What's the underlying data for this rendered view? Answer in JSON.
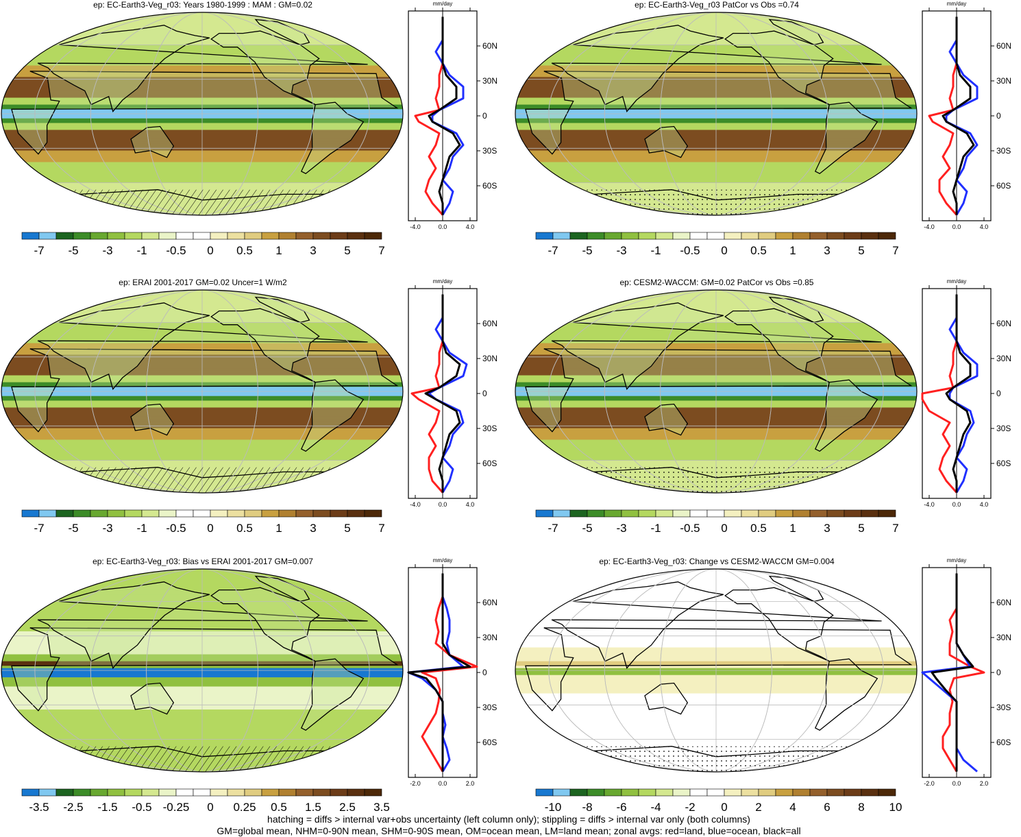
{
  "figure": {
    "footer_lines": [
      "hatching = diffs > internal var+obs uncertainty (left column only); stippling = diffs > internal var only (both columns)",
      "GM=global mean, NHM=0-90N mean, SHM=0-90S mean, OM=ocean mean, LM=land mean; zonal avgs: red=land, blue=ocean, black=all"
    ],
    "zonal_units": "mm/day",
    "lat_labels": [
      "60N",
      "30N",
      "0",
      "30S",
      "60S"
    ],
    "lat_values": [
      60,
      30,
      0,
      -30,
      -60
    ],
    "series_colors": {
      "land": "#ff2020",
      "ocean": "#2030ff",
      "all": "#000000"
    },
    "colors": {
      "ocean_map": "#eef2f8",
      "coast": "#000000",
      "grid": "#bbbbbb"
    }
  },
  "panels": [
    {
      "title": "ep: EC-Earth3-Veg_r03: Years 1980-1999 : MAM : GM=0.02",
      "colorbar_labels": [
        "-7",
        "-5",
        "-3",
        "-1",
        "-0.5",
        "0",
        "0.5",
        "1",
        "3",
        "5",
        "7"
      ],
      "x_tick_labels": [
        "-4.0",
        "0.0",
        "4.0"
      ],
      "xlim": [
        -5,
        5
      ],
      "hatch": "hatch",
      "pattern": "mean"
    },
    {
      "title": "ep: EC-Earth3-Veg_r03 PatCor vs Obs =0.74",
      "colorbar_labels": [
        "-7",
        "-5",
        "-3",
        "-1",
        "-0.5",
        "0",
        "0.5",
        "1",
        "3",
        "5",
        "7"
      ],
      "x_tick_labels": [
        "-4.0",
        "0.0",
        "4.0"
      ],
      "xlim": [
        -5,
        5
      ],
      "hatch": "stipple",
      "pattern": "mean"
    },
    {
      "title": "ep: ERAI 2001-2017 GM=0.02 Uncer=1 W/m2",
      "colorbar_labels": [
        "-7",
        "-5",
        "-3",
        "-1",
        "-0.5",
        "0",
        "0.5",
        "1",
        "3",
        "5",
        "7"
      ],
      "x_tick_labels": [
        "-4.0",
        "0.0",
        "4.0"
      ],
      "xlim": [
        -5,
        5
      ],
      "hatch": "hatch",
      "pattern": "mean"
    },
    {
      "title": "ep: CESM2-WACCM: GM=0.02 PatCor vs Obs =0.85",
      "colorbar_labels": [
        "-7",
        "-5",
        "-3",
        "-1",
        "-0.5",
        "0",
        "0.5",
        "1",
        "3",
        "5",
        "7"
      ],
      "x_tick_labels": [
        "-4.0",
        "0.0",
        "4.0"
      ],
      "xlim": [
        -5,
        5
      ],
      "hatch": "stipple",
      "pattern": "mean"
    },
    {
      "title": "ep: EC-Earth3-Veg_r03: Bias vs ERAI 2001-2017 GM=0.007",
      "colorbar_labels": [
        "-3.5",
        "-2.5",
        "-1.5",
        "-0.5",
        "-0.25",
        "0",
        "0.25",
        "0.5",
        "1.5",
        "2.5",
        "3.5"
      ],
      "x_tick_labels": [
        "-2.0",
        "0.0",
        "2.0"
      ],
      "xlim": [
        -2.5,
        2.5
      ],
      "hatch": "hatch",
      "pattern": "bias"
    },
    {
      "title": "ep: EC-Earth3-Veg_r03: Change vs CESM2-WACCM GM=0.004",
      "colorbar_labels": [
        "-10",
        "-8",
        "-6",
        "-4",
        "-2",
        "0",
        "2",
        "4",
        "6",
        "8",
        "10"
      ],
      "x_tick_labels": [
        "-2.0",
        "0.0",
        "2.0"
      ],
      "xlim": [
        -2.5,
        2.5
      ],
      "hatch": "stipple",
      "pattern": "change"
    }
  ],
  "colorbar_colors": [
    "#1878d0",
    "#80c8f0",
    "#1c6420",
    "#3c8c28",
    "#68a830",
    "#90c040",
    "#b4d860",
    "#d4e890",
    "#eaf4c8",
    "#ffffff",
    "#ffffff",
    "#f4f0c0",
    "#ece0a0",
    "#e0cc80",
    "#c8a040",
    "#b08030",
    "#94602c",
    "#7c4c20",
    "#6c3c18",
    "#5a3010",
    "#4c2808"
  ],
  "chart_data": [
    {
      "type": "line",
      "title": "ep: EC-Earth3-Veg_r03: Years 1980-1999 : MAM : GM=0.02",
      "xlabel": "mm/day",
      "y_axis": "latitude",
      "series": [
        {
          "name": "land",
          "lat": [
            -85,
            -75,
            -65,
            -55,
            -45,
            -35,
            -25,
            -15,
            -5,
            0,
            5,
            15,
            25,
            35,
            45,
            55,
            65,
            75,
            85
          ],
          "values": [
            0,
            -1.5,
            -2.5,
            -2,
            -1,
            -2,
            -1,
            -0.5,
            -3.5,
            -4,
            -0.5,
            -1,
            -0.5,
            -0.5,
            0,
            0,
            0,
            0,
            0
          ]
        },
        {
          "name": "ocean",
          "lat": [
            -85,
            -75,
            -65,
            -55,
            -45,
            -35,
            -25,
            -15,
            -5,
            0,
            5,
            15,
            25,
            35,
            45,
            55,
            65,
            75,
            85
          ],
          "values": [
            0,
            1,
            1.5,
            0,
            1,
            1.5,
            3,
            2,
            -1.5,
            -1.5,
            -0.5,
            3,
            3,
            1,
            0,
            -1,
            0,
            0,
            0
          ]
        },
        {
          "name": "all",
          "lat": [
            -85,
            -75,
            -65,
            -55,
            -45,
            -35,
            -25,
            -15,
            -5,
            0,
            5,
            15,
            25,
            35,
            45,
            55,
            65,
            75,
            85
          ],
          "values": [
            0,
            0,
            -0.5,
            0,
            0.5,
            1,
            2.5,
            1.5,
            -1.5,
            -2,
            -0.5,
            2,
            2,
            0.5,
            0,
            0,
            0,
            0,
            0
          ]
        }
      ]
    },
    {
      "type": "line",
      "title": "ep: EC-Earth3-Veg_r03 PatCor vs Obs =0.74",
      "xlabel": "mm/day",
      "y_axis": "latitude",
      "series": [
        {
          "name": "land",
          "lat": [
            -85,
            -75,
            -65,
            -55,
            -45,
            -35,
            -25,
            -15,
            -5,
            0,
            5,
            15,
            25,
            35,
            45,
            55,
            65,
            75,
            85
          ],
          "values": [
            0,
            -1.5,
            -2.5,
            -2.5,
            -1,
            -2,
            -1,
            -0.5,
            -3.5,
            -4,
            -0.5,
            -1,
            -0.5,
            -0.5,
            0,
            0,
            0,
            0,
            0
          ]
        },
        {
          "name": "ocean",
          "lat": [
            -85,
            -75,
            -65,
            -55,
            -45,
            -35,
            -25,
            -15,
            -5,
            0,
            5,
            15,
            25,
            35,
            45,
            55,
            65,
            75,
            85
          ],
          "values": [
            0,
            1,
            1.5,
            0,
            1,
            1.5,
            3,
            2,
            -1.5,
            -1.5,
            -0.5,
            3,
            3,
            1,
            0,
            -1,
            0,
            0,
            0
          ]
        },
        {
          "name": "all",
          "lat": [
            -85,
            -75,
            -65,
            -55,
            -45,
            -35,
            -25,
            -15,
            -5,
            0,
            5,
            15,
            25,
            35,
            45,
            55,
            65,
            75,
            85
          ],
          "values": [
            0,
            0,
            -0.5,
            0,
            0.5,
            1,
            2.5,
            1.5,
            -1.5,
            -2,
            -0.5,
            2,
            2,
            0.5,
            0,
            0,
            0,
            0,
            0
          ]
        }
      ]
    },
    {
      "type": "line",
      "title": "ep: ERAI 2001-2017 GM=0.02 Uncer=1 W/m2",
      "xlabel": "mm/day",
      "y_axis": "latitude",
      "series": [
        {
          "name": "land",
          "lat": [
            -85,
            -75,
            -65,
            -55,
            -45,
            -35,
            -25,
            -15,
            -5,
            0,
            5,
            15,
            25,
            35,
            45,
            55,
            65,
            75,
            85
          ],
          "values": [
            0,
            -1.5,
            -2,
            -2,
            -1,
            -2,
            -1,
            -0.5,
            -3.5,
            -4.5,
            -0.5,
            -1,
            -0.5,
            -0.5,
            0,
            0,
            0,
            0,
            0
          ]
        },
        {
          "name": "ocean",
          "lat": [
            -85,
            -75,
            -65,
            -55,
            -45,
            -35,
            -25,
            -15,
            -5,
            0,
            5,
            15,
            25,
            35,
            45,
            55,
            65,
            75,
            85
          ],
          "values": [
            0,
            1,
            1.5,
            0,
            1,
            1.5,
            3,
            2.5,
            -1,
            -2,
            -0.5,
            3,
            3.5,
            1,
            0,
            -1,
            0,
            0,
            0
          ]
        },
        {
          "name": "all",
          "lat": [
            -85,
            -75,
            -65,
            -55,
            -45,
            -35,
            -25,
            -15,
            -5,
            0,
            5,
            15,
            25,
            35,
            45,
            55,
            65,
            75,
            85
          ],
          "values": [
            0,
            0,
            -0.5,
            0,
            0.5,
            1,
            2.5,
            2,
            -1,
            -2.5,
            -0.5,
            2,
            2.5,
            0.5,
            0,
            0,
            0,
            0,
            0
          ]
        }
      ]
    },
    {
      "type": "line",
      "title": "ep: CESM2-WACCM: GM=0.02 PatCor vs Obs =0.85",
      "xlabel": "mm/day",
      "y_axis": "latitude",
      "series": [
        {
          "name": "land",
          "lat": [
            -85,
            -75,
            -65,
            -55,
            -45,
            -35,
            -25,
            -15,
            -5,
            0,
            5,
            15,
            25,
            35,
            45,
            55,
            65,
            75,
            85
          ],
          "values": [
            0,
            -1.5,
            -2.5,
            -2,
            -1,
            -2,
            -1,
            -4,
            -5,
            -5,
            -0.5,
            -1,
            -0.5,
            -0.5,
            0,
            0,
            0,
            0,
            0
          ]
        },
        {
          "name": "ocean",
          "lat": [
            -85,
            -75,
            -65,
            -55,
            -45,
            -35,
            -25,
            -15,
            -5,
            0,
            5,
            15,
            25,
            35,
            45,
            55,
            65,
            75,
            85
          ],
          "values": [
            0,
            1,
            1.5,
            0,
            1,
            1.5,
            2.5,
            2,
            -1,
            -1,
            -0.5,
            3,
            3,
            1,
            0,
            -1,
            0,
            0,
            0
          ]
        },
        {
          "name": "all",
          "lat": [
            -85,
            -75,
            -65,
            -55,
            -45,
            -35,
            -25,
            -15,
            -5,
            0,
            5,
            15,
            25,
            35,
            45,
            55,
            65,
            75,
            85
          ],
          "values": [
            0,
            0,
            -0.5,
            0,
            0.5,
            1,
            2,
            1.5,
            -1,
            -1.5,
            -0.5,
            2,
            2,
            0.5,
            0,
            0,
            0,
            0,
            0
          ]
        }
      ]
    },
    {
      "type": "line",
      "title": "ep: EC-Earth3-Veg_r03: Bias vs ERAI 2001-2017 GM=0.007",
      "xlabel": "mm/day",
      "y_axis": "latitude",
      "series": [
        {
          "name": "land",
          "lat": [
            -85,
            -75,
            -65,
            -55,
            -45,
            -35,
            -25,
            -15,
            -5,
            0,
            5,
            15,
            25,
            35,
            45,
            55,
            65,
            75,
            85
          ],
          "values": [
            0,
            -0.5,
            -1,
            -1.5,
            -1,
            -0.5,
            -0.3,
            -0.2,
            -0.5,
            -1.5,
            2.5,
            0.5,
            -0.5,
            -0.3,
            -0.5,
            -0.3,
            0,
            0,
            0
          ]
        },
        {
          "name": "ocean",
          "lat": [
            -85,
            -75,
            -65,
            -55,
            -45,
            -35,
            -25,
            -15,
            -5,
            0,
            5,
            15,
            25,
            35,
            45,
            55,
            65,
            75,
            85
          ],
          "values": [
            0,
            0.5,
            0.3,
            0,
            0.2,
            0,
            0,
            -0.5,
            -1.5,
            -2.5,
            1.5,
            0.5,
            0.3,
            0.5,
            0.5,
            0.3,
            0,
            0,
            0
          ]
        },
        {
          "name": "all",
          "lat": [
            -85,
            -75,
            -65,
            -55,
            -45,
            -35,
            -25,
            -15,
            -5,
            0,
            5,
            15,
            25,
            35,
            45,
            55,
            65,
            75,
            85
          ],
          "values": [
            0,
            0,
            0,
            0,
            0,
            0,
            0,
            -0.5,
            -1.2,
            -2.5,
            2,
            0.5,
            0,
            0,
            0,
            0,
            0,
            0,
            0
          ]
        }
      ]
    },
    {
      "type": "line",
      "title": "ep: EC-Earth3-Veg_r03: Change vs CESM2-WACCM GM=0.004",
      "xlabel": "mm/day",
      "y_axis": "latitude",
      "series": [
        {
          "name": "land",
          "lat": [
            -85,
            -75,
            -65,
            -55,
            -45,
            -35,
            -25,
            -15,
            -5,
            0,
            5,
            15,
            25,
            35,
            45,
            55,
            65,
            75,
            85
          ],
          "values": [
            0,
            -0.5,
            -1,
            -1,
            -0.5,
            -0.5,
            -0.3,
            -0.5,
            -0.2,
            2,
            1,
            -0.5,
            -0.5,
            -0.3,
            -0.5,
            0,
            0,
            0,
            0
          ]
        },
        {
          "name": "ocean",
          "lat": [
            -85,
            -75,
            -65,
            -55,
            -45,
            -35,
            -25,
            -15,
            -5,
            0,
            5,
            15,
            25,
            35,
            45,
            55,
            65,
            75,
            85
          ],
          "values": [
            1.5,
            0.5,
            0,
            0,
            0,
            0,
            0,
            -1,
            -2,
            -2.5,
            1,
            0.5,
            0,
            0,
            0,
            0,
            0,
            0,
            0
          ]
        },
        {
          "name": "all",
          "lat": [
            -85,
            -75,
            -65,
            -55,
            -45,
            -35,
            -25,
            -15,
            -5,
            0,
            5,
            15,
            25,
            35,
            45,
            55,
            65,
            75,
            85
          ],
          "values": [
            0,
            0,
            0,
            0,
            0,
            0,
            0,
            -0.8,
            -1.5,
            -1.8,
            1.2,
            0.5,
            0,
            0,
            0,
            0,
            0,
            0,
            0
          ]
        }
      ]
    }
  ]
}
